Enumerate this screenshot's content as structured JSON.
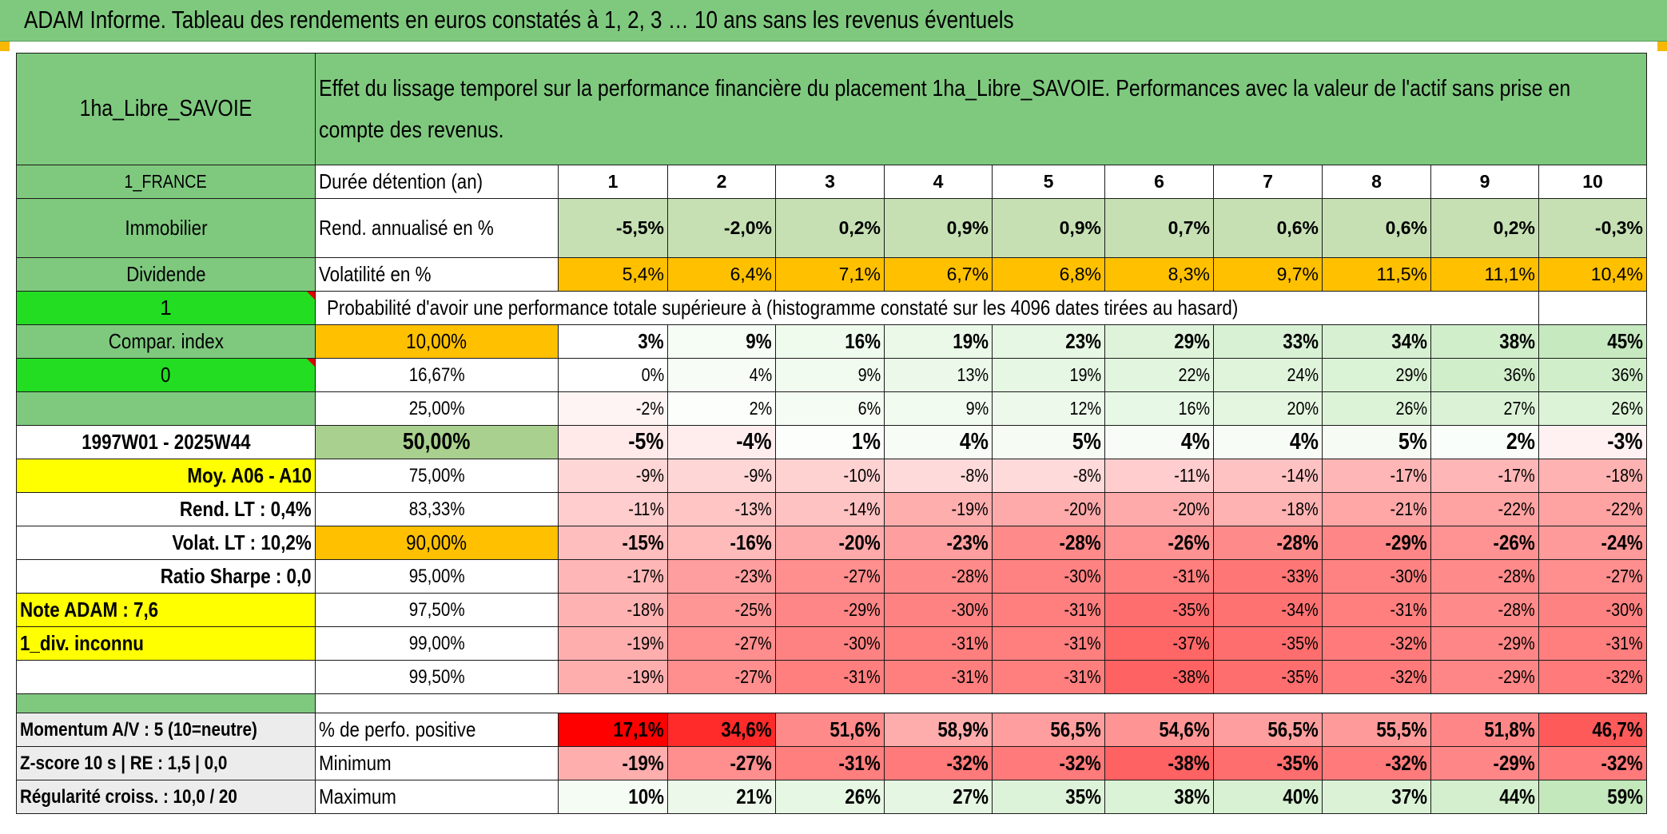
{
  "title": "ADAM Informe. Tableau des rendements en euros constatés à 1, 2, 3 … 10 ans sans les revenus éventuels",
  "left": {
    "name": "1ha_Libre_SAVOIE",
    "country": "1_FRANCE",
    "asset_class": "Immobilier",
    "income_type": "Dividende",
    "flag1": "1",
    "compar_label": "Compar. index",
    "flag2": "0",
    "period": "1997W01 - 2025W44",
    "moy": "Moy. A06 - A10",
    "rend_lt": "Rend. LT :   0,4%",
    "volat_lt": "Volat. LT :   10,2%",
    "sharpe": "Ratio Sharpe :    0,0",
    "note": "Note ADAM : 7,6",
    "div": "1_div. inconnu",
    "momentum": "Momentum A/V : 5 (10=neutre)",
    "zscore": "Z-score 10 s | RE : 1,5 | 0,0",
    "regularite": "Régularité croiss. : 10,0 / 20"
  },
  "header_text": "Effet du lissage temporel sur la performance financière du placement 1ha_Libre_SAVOIE. Performances avec la valeur de l'actif sans prise en compte des revenus.",
  "durations_label": "Durée détention (an)",
  "durations": [
    "1",
    "2",
    "3",
    "4",
    "5",
    "6",
    "7",
    "8",
    "9",
    "10"
  ],
  "rend_label": "Rend. annualisé en %",
  "rend": [
    "-5,5%",
    "-2,0%",
    "0,2%",
    "0,9%",
    "0,9%",
    "0,7%",
    "0,6%",
    "0,6%",
    "0,2%",
    "-0,3%"
  ],
  "vol_label": "Volatilité en %",
  "vol": [
    "5,4%",
    "6,4%",
    "7,1%",
    "6,7%",
    "6,8%",
    "8,3%",
    "9,7%",
    "11,5%",
    "11,1%",
    "10,4%"
  ],
  "proba_header": "Probabilité d'avoir une performance totale supérieure à (histogramme constaté sur les 4096 dates tirées au hasard)",
  "percentiles": [
    {
      "label": "10,00%",
      "values": [
        "3%",
        "9%",
        "16%",
        "19%",
        "23%",
        "29%",
        "33%",
        "34%",
        "38%",
        "45%"
      ],
      "colors": [
        "#ffffff",
        "#f6fdf5",
        "#effbed",
        "#ebf9e9",
        "#e6f7e3",
        "#def3da",
        "#d8f1d4",
        "#d7f0d2",
        "#d1eecb",
        "#c6e9bf"
      ]
    },
    {
      "label": "16,67%",
      "values": [
        "0%",
        "4%",
        "9%",
        "13%",
        "19%",
        "22%",
        "24%",
        "29%",
        "36%",
        "36%"
      ],
      "colors": [
        "#ffffff",
        "#f7fdf6",
        "#f1fbef",
        "#ecf9ea",
        "#e6f7e3",
        "#e2f5df",
        "#e0f4dc",
        "#daf2d5",
        "#d1eecb",
        "#d1eecb"
      ]
    },
    {
      "label": "25,00%",
      "values": [
        "-2%",
        "2%",
        "6%",
        "9%",
        "12%",
        "16%",
        "20%",
        "26%",
        "27%",
        "26%"
      ],
      "colors": [
        "#fff4f4",
        "#fbfefa",
        "#f5fcf3",
        "#f1fbef",
        "#edfaeb",
        "#e8f8e6",
        "#e4f6e0",
        "#dcf3d8",
        "#dbf2d7",
        "#dcf3d8"
      ]
    },
    {
      "label": "50,00%",
      "values": [
        "-5%",
        "-4%",
        "1%",
        "4%",
        "5%",
        "4%",
        "4%",
        "5%",
        "2%",
        "-3%"
      ],
      "colors": [
        "#ffe9e9",
        "#ffeded",
        "#fcfefc",
        "#f7fdf6",
        "#f6fcf4",
        "#f7fdf6",
        "#f7fdf6",
        "#f6fcf4",
        "#fafefa",
        "#fff1f1"
      ]
    },
    {
      "label": "75,00%",
      "values": [
        "-9%",
        "-9%",
        "-10%",
        "-8%",
        "-8%",
        "-11%",
        "-14%",
        "-17%",
        "-17%",
        "-18%"
      ],
      "colors": [
        "#ffd6d6",
        "#ffd6d6",
        "#ffd2d2",
        "#ffdada",
        "#ffdada",
        "#ffcdcd",
        "#ffc2c2",
        "#ffb6b6",
        "#ffb6b6",
        "#ffb2b2"
      ]
    },
    {
      "label": "83,33%",
      "values": [
        "-11%",
        "-13%",
        "-14%",
        "-19%",
        "-20%",
        "-20%",
        "-18%",
        "-21%",
        "-22%",
        "-22%"
      ],
      "colors": [
        "#ffcdcd",
        "#ffc5c5",
        "#ffc2c2",
        "#ffaeae",
        "#ffaaaa",
        "#ffaaaa",
        "#ffb2b2",
        "#ffa6a6",
        "#ffa2a2",
        "#ffa2a2"
      ]
    },
    {
      "label": "90,00%",
      "values": [
        "-15%",
        "-16%",
        "-20%",
        "-23%",
        "-28%",
        "-26%",
        "-28%",
        "-29%",
        "-26%",
        "-24%"
      ],
      "colors": [
        "#ffbebe",
        "#ffbaba",
        "#ffaaaa",
        "#ff9e9e",
        "#ff8a8a",
        "#ff9292",
        "#ff8a8a",
        "#ff8686",
        "#ff9292",
        "#ff9a9a"
      ]
    },
    {
      "label": "95,00%",
      "values": [
        "-17%",
        "-23%",
        "-27%",
        "-28%",
        "-30%",
        "-31%",
        "-33%",
        "-30%",
        "-28%",
        "-27%"
      ],
      "colors": [
        "#ffb6b6",
        "#ff9e9e",
        "#ff8e8e",
        "#ff8a8a",
        "#ff8282",
        "#ff7e7e",
        "#ff7676",
        "#ff8282",
        "#ff8a8a",
        "#ff8e8e"
      ]
    },
    {
      "label": "97,50%",
      "values": [
        "-18%",
        "-25%",
        "-29%",
        "-30%",
        "-31%",
        "-35%",
        "-34%",
        "-31%",
        "-28%",
        "-30%"
      ],
      "colors": [
        "#ffb2b2",
        "#ff9696",
        "#ff8686",
        "#ff8282",
        "#ff7e7e",
        "#ff6e6e",
        "#ff7272",
        "#ff7e7e",
        "#ff8a8a",
        "#ff8282"
      ]
    },
    {
      "label": "99,00%",
      "values": [
        "-19%",
        "-27%",
        "-30%",
        "-31%",
        "-31%",
        "-37%",
        "-35%",
        "-32%",
        "-29%",
        "-31%"
      ],
      "colors": [
        "#ffaeae",
        "#ff8e8e",
        "#ff8282",
        "#ff7e7e",
        "#ff7e7e",
        "#ff6666",
        "#ff6e6e",
        "#ff7a7a",
        "#ff8686",
        "#ff7e7e"
      ]
    },
    {
      "label": "99,50%",
      "values": [
        "-19%",
        "-27%",
        "-31%",
        "-31%",
        "-31%",
        "-38%",
        "-35%",
        "-32%",
        "-29%",
        "-32%"
      ],
      "colors": [
        "#ffaeae",
        "#ff8e8e",
        "#ff7e7e",
        "#ff7e7e",
        "#ff7e7e",
        "#ff6262",
        "#ff6e6e",
        "#ff7a7a",
        "#ff8686",
        "#ff7a7a"
      ]
    }
  ],
  "perf_label": "% de perfo. positive",
  "perf": [
    "17,1%",
    "34,6%",
    "51,6%",
    "58,9%",
    "56,5%",
    "54,6%",
    "56,5%",
    "55,5%",
    "51,8%",
    "46,7%"
  ],
  "perf_colors": [
    "#ff0000",
    "#ff2a2a",
    "#ff8a8a",
    "#ffacac",
    "#ff9e9e",
    "#ff9494",
    "#ff9e9e",
    "#ff9a9a",
    "#ff8686",
    "#ff5a5a"
  ],
  "min_label": "Minimum",
  "min": [
    "-19%",
    "-27%",
    "-31%",
    "-32%",
    "-32%",
    "-38%",
    "-35%",
    "-32%",
    "-29%",
    "-32%"
  ],
  "min_colors": [
    "#ffaeae",
    "#ff8e8e",
    "#ff7e7e",
    "#ff7a7a",
    "#ff7a7a",
    "#ff6262",
    "#ff6e6e",
    "#ff7a7a",
    "#ff8686",
    "#ff7a7a"
  ],
  "max_label": "Maximum",
  "max": [
    "10%",
    "21%",
    "26%",
    "27%",
    "35%",
    "38%",
    "40%",
    "37%",
    "44%",
    "59%"
  ],
  "max_colors": [
    "#f5fcf4",
    "#ecf9ea",
    "#e6f7e3",
    "#e5f6e2",
    "#ddf3d9",
    "#daf2d5",
    "#d8f1d3",
    "#dbf2d7",
    "#d3efcd",
    "#c3e8bb"
  ]
}
